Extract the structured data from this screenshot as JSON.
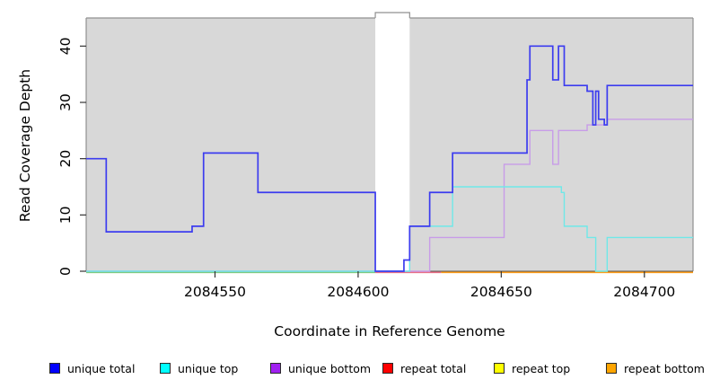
{
  "figure": {
    "x_axis_label": "Coordinate in Reference Genome",
    "y_axis_label": "Read Coverage Depth"
  },
  "chart_data": {
    "type": "line",
    "subtype": "step-after",
    "title": "",
    "xlabel": "Coordinate in Reference Genome",
    "ylabel": "Read Coverage Depth",
    "xlim": [
      2084505,
      2084717
    ],
    "ylim": [
      0,
      45
    ],
    "x_ticks": [
      2084550,
      2084600,
      2084650,
      2084700
    ],
    "y_ticks": [
      0,
      10,
      20,
      30,
      40
    ],
    "grid": false,
    "legend_position": "bottom",
    "plot_background": "#d8d8d8",
    "outer_background": "#ffffff",
    "frame_color": "#909090",
    "gap_region": {
      "x_start": 2084606,
      "x_end": 2084618,
      "fill": "#ffffff"
    },
    "series": [
      {
        "name": "unique total",
        "line_color": "#3c3cef",
        "legend_color": "#0000ff",
        "points": [
          [
            2084505,
            20
          ],
          [
            2084512,
            7
          ],
          [
            2084542,
            8
          ],
          [
            2084546,
            21
          ],
          [
            2084565,
            14
          ],
          [
            2084606,
            0
          ],
          [
            2084616,
            2
          ],
          [
            2084618,
            8
          ],
          [
            2084625,
            14
          ],
          [
            2084633,
            21
          ],
          [
            2084659,
            34
          ],
          [
            2084660,
            40
          ],
          [
            2084668,
            34
          ],
          [
            2084670,
            40
          ],
          [
            2084672,
            33
          ],
          [
            2084680,
            32
          ],
          [
            2084682,
            26
          ],
          [
            2084683,
            32
          ],
          [
            2084684,
            27
          ],
          [
            2084686,
            26
          ],
          [
            2084687,
            33
          ]
        ]
      },
      {
        "name": "unique top",
        "line_color": "#6fe8e8",
        "legend_color": "#00ffff",
        "points": [
          [
            2084505,
            0
          ],
          [
            2084618,
            8
          ],
          [
            2084633,
            15
          ],
          [
            2084671,
            14
          ],
          [
            2084672,
            8
          ],
          [
            2084680,
            6
          ],
          [
            2084683,
            0
          ],
          [
            2084687,
            6
          ]
        ]
      },
      {
        "name": "unique bottom",
        "line_color": "#c89ce8",
        "legend_color": "#a020f0",
        "points": [
          [
            2084505,
            0
          ],
          [
            2084625,
            6
          ],
          [
            2084651,
            19
          ],
          [
            2084660,
            25
          ],
          [
            2084668,
            19
          ],
          [
            2084670,
            25
          ],
          [
            2084680,
            26
          ],
          [
            2084687,
            27
          ]
        ]
      },
      {
        "name": "repeat total",
        "line_color": "#ea7086",
        "legend_color": "#ff0000",
        "points": [
          [
            2084505,
            0
          ]
        ]
      },
      {
        "name": "repeat top",
        "line_color": "#f0f07a",
        "legend_color": "#ffff00",
        "points": [
          [
            2084505,
            0
          ]
        ]
      },
      {
        "name": "repeat bottom",
        "line_color": "#ff9e1b",
        "legend_color": "#ffa500",
        "points": [
          [
            2084505,
            0
          ]
        ]
      }
    ],
    "zero_line_segments": [
      {
        "color": "#7fca7f",
        "x_start": 2084505,
        "x_end": 2084606
      },
      {
        "color": "#ea7086",
        "x_start": 2084606,
        "x_end": 2084629
      },
      {
        "color": "#ff9e1b",
        "x_start": 2084629,
        "x_end": 2084717
      }
    ]
  }
}
